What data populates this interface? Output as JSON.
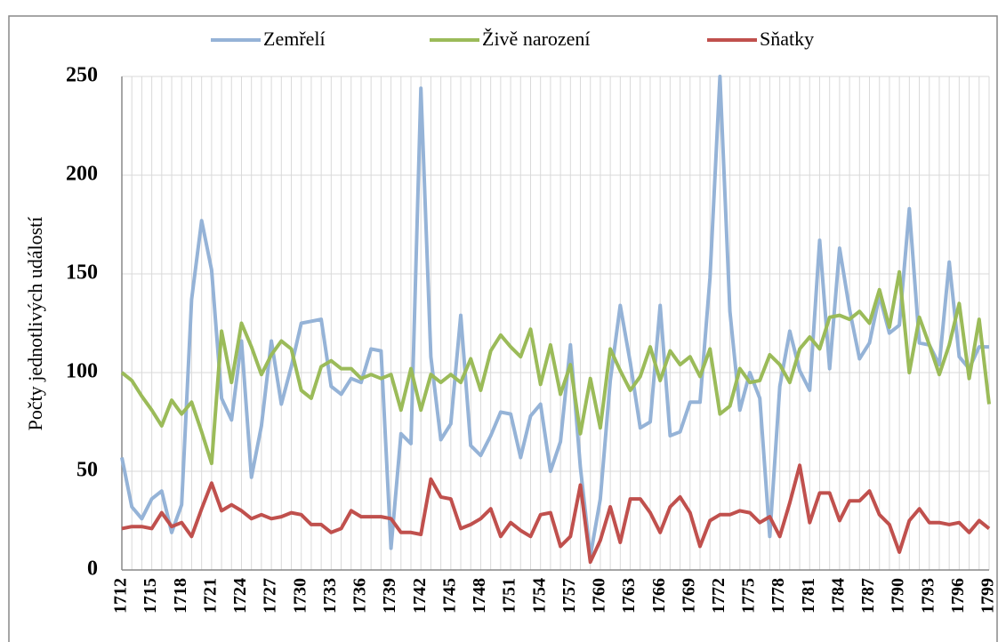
{
  "chart_data": {
    "type": "line",
    "y_label": "Počty jednotlivých událostí",
    "categories": [
      "1712",
      null,
      null,
      "1715",
      null,
      null,
      "1718",
      null,
      null,
      "1721",
      null,
      null,
      "1724",
      null,
      null,
      "1727",
      null,
      null,
      "1730",
      null,
      null,
      "1733",
      null,
      null,
      "1736",
      null,
      null,
      "1739",
      null,
      null,
      "1742",
      null,
      null,
      "1745",
      null,
      null,
      "1748",
      null,
      null,
      "1751",
      null,
      null,
      "1754",
      null,
      null,
      "1757",
      null,
      null,
      "1760",
      null,
      null,
      "1763",
      null,
      null,
      "1766",
      null,
      null,
      "1769",
      null,
      null,
      "1772",
      null,
      null,
      "1775",
      null,
      null,
      "1778",
      null,
      null,
      "1781",
      null,
      null,
      "1784",
      null,
      null,
      "1787",
      null,
      null,
      "1790",
      null,
      null,
      "1793",
      null,
      null,
      "1796",
      null,
      null,
      "1799"
    ],
    "series": [
      {
        "name": "Zemřelí",
        "color": "#95b3d7",
        "values": [
          57,
          32,
          26,
          36,
          40,
          19,
          33,
          137,
          177,
          152,
          87,
          76,
          116,
          47,
          73,
          116,
          84,
          103,
          125,
          126,
          127,
          93,
          89,
          97,
          95,
          112,
          111,
          11,
          69,
          64,
          244,
          108,
          66,
          74,
          129,
          63,
          58,
          68,
          80,
          79,
          57,
          78,
          84,
          50,
          65,
          114,
          52,
          7,
          36,
          96,
          134,
          105,
          72,
          75,
          134,
          68,
          70,
          85,
          85,
          148,
          250,
          131,
          81,
          100,
          87,
          17,
          93,
          121,
          101,
          91,
          167,
          102,
          163,
          132,
          107,
          115,
          139,
          120,
          124,
          183,
          115,
          114,
          104,
          156,
          108,
          102,
          113,
          113
        ]
      },
      {
        "name": "Živě narození",
        "color": "#9bbb59",
        "values": [
          100,
          96,
          88,
          81,
          73,
          86,
          79,
          85,
          70,
          54,
          121,
          95,
          125,
          113,
          99,
          109,
          116,
          112,
          91,
          87,
          103,
          106,
          102,
          102,
          97,
          99,
          97,
          99,
          81,
          102,
          81,
          99,
          95,
          99,
          95,
          107,
          91,
          111,
          119,
          113,
          108,
          122,
          94,
          114,
          89,
          104,
          69,
          97,
          72,
          112,
          101,
          91,
          98,
          113,
          96,
          111,
          104,
          108,
          98,
          112,
          79,
          83,
          102,
          95,
          96,
          109,
          104,
          95,
          112,
          118,
          112,
          128,
          129,
          127,
          131,
          125,
          142,
          123,
          151,
          100,
          128,
          114,
          99,
          114,
          135,
          97,
          127,
          84
        ]
      },
      {
        "name": "Sňatky",
        "color": "#c0504d",
        "values": [
          21,
          22,
          22,
          21,
          29,
          22,
          24,
          17,
          31,
          44,
          30,
          33,
          30,
          26,
          28,
          26,
          27,
          29,
          28,
          23,
          23,
          19,
          21,
          30,
          27,
          27,
          27,
          26,
          19,
          19,
          18,
          46,
          37,
          36,
          21,
          23,
          26,
          31,
          17,
          24,
          20,
          17,
          28,
          29,
          12,
          17,
          43,
          4,
          15,
          32,
          14,
          36,
          36,
          29,
          19,
          32,
          37,
          29,
          12,
          25,
          28,
          28,
          30,
          29,
          24,
          27,
          17,
          34,
          53,
          24,
          39,
          39,
          25,
          35,
          35,
          40,
          28,
          23,
          9,
          25,
          31,
          24,
          24,
          23,
          24,
          19,
          25,
          21
        ]
      }
    ],
    "ylim": [
      0,
      250
    ],
    "yticks": [
      0,
      50,
      100,
      150,
      200,
      250
    ],
    "grid": true
  }
}
